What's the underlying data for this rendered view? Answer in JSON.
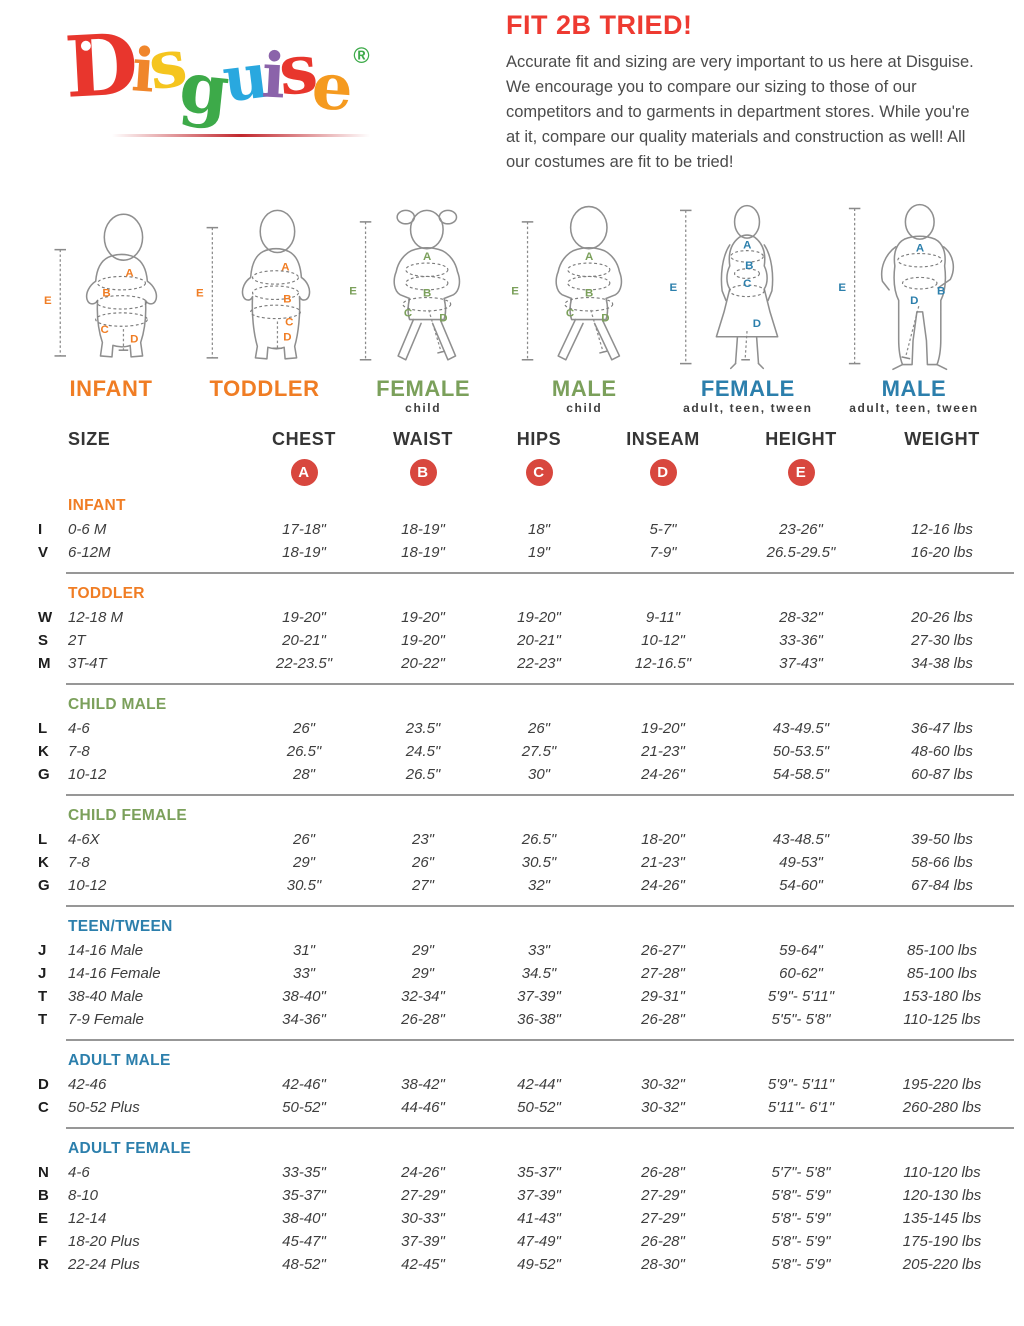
{
  "logo": {
    "word": [
      {
        "ch": "D",
        "color": "#e8362d"
      },
      {
        "ch": "i",
        "color": "#f0862b"
      },
      {
        "ch": "s",
        "color": "#f5c51f"
      },
      {
        "ch": "g",
        "color": "#3daa49"
      },
      {
        "ch": "u",
        "color": "#29a8df"
      },
      {
        "ch": "i",
        "color": "#8b63aa"
      },
      {
        "ch": "s",
        "color": "#e8362d"
      },
      {
        "ch": "e",
        "color": "#f59a1f"
      }
    ],
    "registered": "®",
    "registered_color": "#3daa49"
  },
  "intro": {
    "title": "FIT 2B TRIED!",
    "title_color": "#ee3a31",
    "paragraph": "Accurate fit and sizing are very important to us here at Disguise. We encourage you to compare our sizing to those of our competitors and to garments in department stores. While you're at it, compare our quality materials and construction as well! All our costumes are fit to be tried!"
  },
  "markers": {
    "a": "A",
    "b": "B",
    "c": "C",
    "d": "D",
    "e": "E"
  },
  "figures": [
    {
      "caption": "INFANT",
      "sub": "",
      "color": "#f07d24"
    },
    {
      "caption": "TODDLER",
      "sub": "",
      "color": "#f07d24"
    },
    {
      "caption": "FEMALE",
      "sub": "child",
      "color": "#7ba05b"
    },
    {
      "caption": "MALE",
      "sub": "child",
      "color": "#7ba05b"
    },
    {
      "caption": "FEMALE",
      "sub": "adult, teen, tween",
      "color": "#2c7fac"
    },
    {
      "caption": "MALE",
      "sub": "adult, teen, tween",
      "color": "#2c7fac"
    }
  ],
  "table": {
    "columns": [
      "SIZE",
      "CHEST",
      "WAIST",
      "HIPS",
      "INSEAM",
      "HEIGHT",
      "WEIGHT"
    ],
    "badges": [
      "A",
      "B",
      "C",
      "D",
      "E"
    ],
    "badge_color": "#d8473e",
    "sections": [
      {
        "name": "INFANT",
        "color": "#f07d24",
        "rows": [
          {
            "letter": "I",
            "size": "0-6 M",
            "chest": "17-18\"",
            "waist": "18-19\"",
            "hips": "18\"",
            "inseam": "5-7\"",
            "height": "23-26\"",
            "weight": "12-16 lbs"
          },
          {
            "letter": "V",
            "size": "6-12M",
            "chest": "18-19\"",
            "waist": "18-19\"",
            "hips": "19\"",
            "inseam": "7-9\"",
            "height": "26.5-29.5\"",
            "weight": "16-20 lbs"
          }
        ]
      },
      {
        "name": "TODDLER",
        "color": "#f07d24",
        "rows": [
          {
            "letter": "W",
            "size": "12-18 M",
            "chest": "19-20\"",
            "waist": "19-20\"",
            "hips": "19-20\"",
            "inseam": "9-11\"",
            "height": "28-32\"",
            "weight": "20-26 lbs"
          },
          {
            "letter": "S",
            "size": "2T",
            "chest": "20-21\"",
            "waist": "19-20\"",
            "hips": "20-21\"",
            "inseam": "10-12\"",
            "height": "33-36\"",
            "weight": "27-30 lbs"
          },
          {
            "letter": "M",
            "size": "3T-4T",
            "chest": "22-23.5\"",
            "waist": "20-22\"",
            "hips": "22-23\"",
            "inseam": "12-16.5\"",
            "height": "37-43\"",
            "weight": "34-38 lbs"
          }
        ]
      },
      {
        "name": "CHILD MALE",
        "color": "#7ba05b",
        "rows": [
          {
            "letter": "L",
            "size": "4-6",
            "chest": "26\"",
            "waist": "23.5\"",
            "hips": "26\"",
            "inseam": "19-20\"",
            "height": "43-49.5\"",
            "weight": "36-47 lbs"
          },
          {
            "letter": "K",
            "size": "7-8",
            "chest": "26.5\"",
            "waist": "24.5\"",
            "hips": "27.5\"",
            "inseam": "21-23\"",
            "height": "50-53.5\"",
            "weight": "48-60 lbs"
          },
          {
            "letter": "G",
            "size": "10-12",
            "chest": "28\"",
            "waist": "26.5\"",
            "hips": "30\"",
            "inseam": "24-26\"",
            "height": "54-58.5\"",
            "weight": "60-87 lbs"
          }
        ]
      },
      {
        "name": "CHILD FEMALE",
        "color": "#7ba05b",
        "rows": [
          {
            "letter": "L",
            "size": "4-6X",
            "chest": "26\"",
            "waist": "23\"",
            "hips": "26.5\"",
            "inseam": "18-20\"",
            "height": "43-48.5\"",
            "weight": "39-50 lbs"
          },
          {
            "letter": "K",
            "size": "7-8",
            "chest": "29\"",
            "waist": "26\"",
            "hips": "30.5\"",
            "inseam": "21-23\"",
            "height": "49-53\"",
            "weight": "58-66 lbs"
          },
          {
            "letter": "G",
            "size": "10-12",
            "chest": "30.5\"",
            "waist": "27\"",
            "hips": "32\"",
            "inseam": "24-26\"",
            "height": "54-60\"",
            "weight": "67-84 lbs"
          }
        ]
      },
      {
        "name": "TEEN/TWEEN",
        "color": "#2c7fac",
        "rows": [
          {
            "letter": "J",
            "size": "14-16 Male",
            "chest": "31\"",
            "waist": "29\"",
            "hips": "33\"",
            "inseam": "26-27\"",
            "height": "59-64\"",
            "weight": "85-100 lbs"
          },
          {
            "letter": "J",
            "size": "14-16 Female",
            "chest": "33\"",
            "waist": "29\"",
            "hips": "34.5\"",
            "inseam": "27-28\"",
            "height": "60-62\"",
            "weight": "85-100 lbs"
          },
          {
            "letter": "T",
            "size": "38-40 Male",
            "chest": "38-40\"",
            "waist": "32-34\"",
            "hips": "37-39\"",
            "inseam": "29-31\"",
            "height": "5'9\"- 5'11\"",
            "weight": "153-180 lbs"
          },
          {
            "letter": "T",
            "size": "7-9 Female",
            "chest": "34-36\"",
            "waist": "26-28\"",
            "hips": "36-38\"",
            "inseam": "26-28\"",
            "height": "5'5\"- 5'8\"",
            "weight": "110-125 lbs"
          }
        ]
      },
      {
        "name": "ADULT MALE",
        "color": "#2c7fac",
        "rows": [
          {
            "letter": "D",
            "size": "42-46",
            "chest": "42-46\"",
            "waist": "38-42\"",
            "hips": "42-44\"",
            "inseam": "30-32\"",
            "height": "5'9\"- 5'11\"",
            "weight": "195-220 lbs"
          },
          {
            "letter": "C",
            "size": "50-52 Plus",
            "chest": "50-52\"",
            "waist": "44-46\"",
            "hips": "50-52\"",
            "inseam": "30-32\"",
            "height": "5'11\"- 6'1\"",
            "weight": "260-280 lbs"
          }
        ]
      },
      {
        "name": "ADULT FEMALE",
        "color": "#2c7fac",
        "rows": [
          {
            "letter": "N",
            "size": "4-6",
            "chest": "33-35\"",
            "waist": "24-26\"",
            "hips": "35-37\"",
            "inseam": "26-28\"",
            "height": "5'7\"- 5'8\"",
            "weight": "110-120 lbs"
          },
          {
            "letter": "B",
            "size": "8-10",
            "chest": "35-37\"",
            "waist": "27-29\"",
            "hips": "37-39\"",
            "inseam": "27-29\"",
            "height": "5'8\"- 5'9\"",
            "weight": "120-130 lbs"
          },
          {
            "letter": "E",
            "size": "12-14",
            "chest": "38-40\"",
            "waist": "30-33\"",
            "hips": "41-43\"",
            "inseam": "27-29\"",
            "height": "5'8\"- 5'9\"",
            "weight": "135-145 lbs"
          },
          {
            "letter": "F",
            "size": "18-20 Plus",
            "chest": "45-47\"",
            "waist": "37-39\"",
            "hips": "47-49\"",
            "inseam": "26-28\"",
            "height": "5'8\"- 5'9\"",
            "weight": "175-190 lbs"
          },
          {
            "letter": "R",
            "size": "22-24 Plus",
            "chest": "48-52\"",
            "waist": "42-45\"",
            "hips": "49-52\"",
            "inseam": "28-30\"",
            "height": "5'8\"- 5'9\"",
            "weight": "205-220 lbs"
          }
        ]
      }
    ]
  }
}
